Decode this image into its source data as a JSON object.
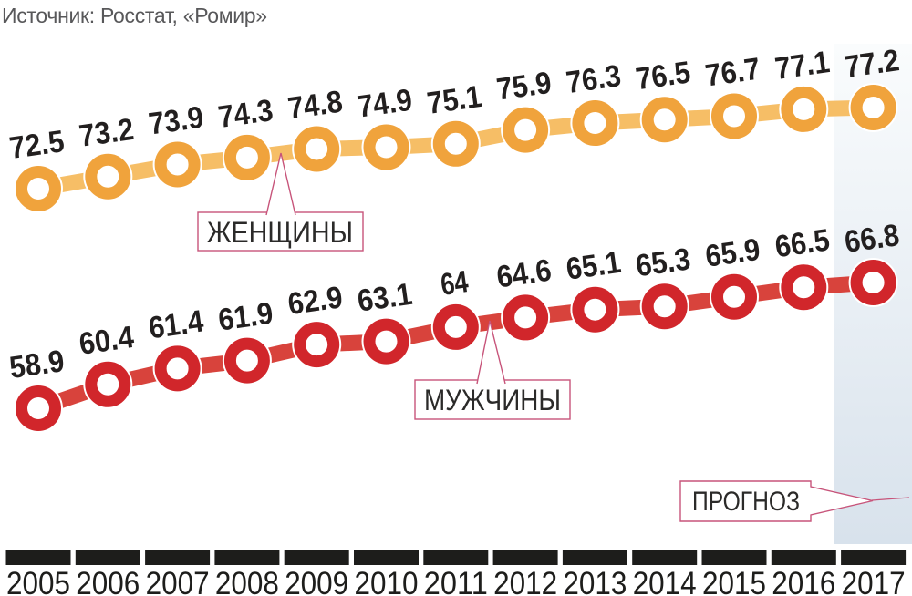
{
  "source": "Источник: Росстат, «Ромир»",
  "chart_data": {
    "type": "line",
    "title": "",
    "xlabel": "",
    "ylabel": "",
    "grid": false,
    "legend_position": "inline-callouts",
    "x": [
      2005,
      2006,
      2007,
      2008,
      2009,
      2010,
      2011,
      2012,
      2013,
      2014,
      2015,
      2016,
      2017
    ],
    "series": [
      {
        "name": "ЖЕНЩИНЫ",
        "values": [
          72.5,
          73.2,
          73.9,
          74.3,
          74.8,
          74.9,
          75.1,
          75.9,
          76.3,
          76.5,
          76.7,
          77.1,
          77.2
        ],
        "color": "#F0A33C",
        "connector_color": "#F6BE66"
      },
      {
        "name": "МУЖЧИНЫ",
        "values": [
          58.9,
          60.4,
          61.4,
          61.9,
          62.9,
          63.1,
          64,
          64.6,
          65.1,
          65.3,
          65.9,
          66.5,
          66.8
        ],
        "color": "#D1262B",
        "connector_color": "#D8433C"
      }
    ],
    "forecast": {
      "label": "ПРОГНОЗ",
      "applies_to_x": 2017
    }
  },
  "colors": {
    "women_line": "#F0A33C",
    "men_line": "#D1262B",
    "forecast_band_top": "#FAFCFD",
    "forecast_band_bottom": "#D8E2EC",
    "callout_border": "#C7547A",
    "axis_bar": "#1D1D1B",
    "axis_text": "#1D1D1B",
    "label_text": "#221F1F",
    "source_text": "#58585A"
  }
}
